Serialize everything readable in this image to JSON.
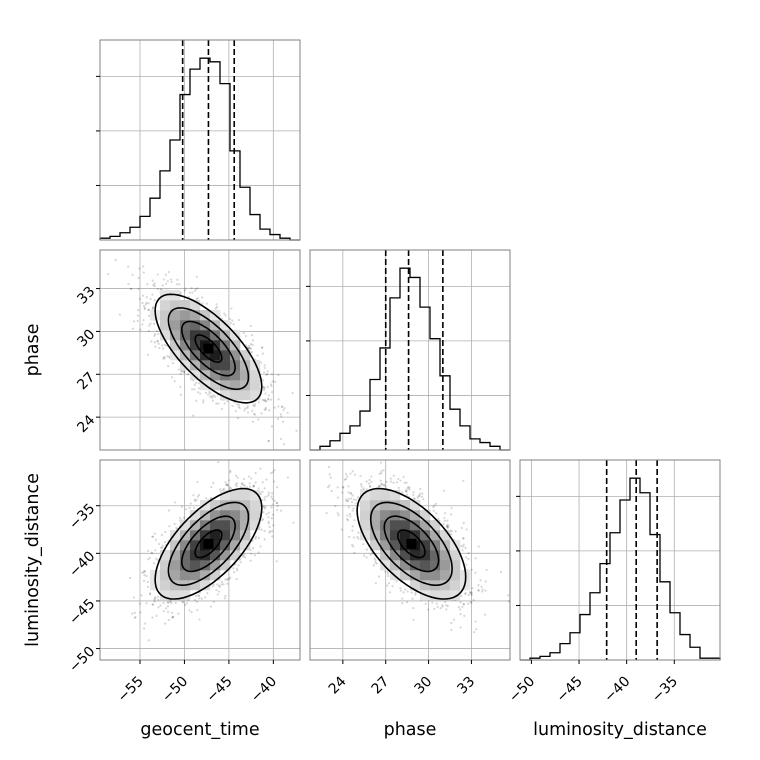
{
  "chart_data": {
    "type": "corner",
    "parameters": [
      "geocent_time",
      "phase",
      "luminosity_distance"
    ],
    "axis_labels": {
      "x": [
        "geocent_time",
        "phase",
        "luminosity_distance"
      ],
      "y": [
        "phase",
        "luminosity_distance"
      ]
    },
    "grid": true,
    "ranges": {
      "geocent_time": [
        -59.5,
        -37.0
      ],
      "phase": [
        21.7,
        35.7
      ],
      "luminosity_distance": [
        -51.2,
        -30.2
      ]
    },
    "ticks": {
      "geocent_time": [
        -55,
        -50,
        -45,
        -40
      ],
      "phase": [
        24,
        27,
        30,
        33
      ],
      "luminosity_distance": [
        -50,
        -45,
        -40,
        -35
      ]
    },
    "tick_labels": {
      "geocent_time": [
        "−55",
        "−50",
        "−45",
        "−40"
      ],
      "phase": [
        "24",
        "27",
        "30",
        "33"
      ],
      "luminosity_distance": [
        "−50",
        "−45",
        "−40",
        "−35"
      ]
    },
    "quantiles": {
      "geocent_time": [
        -50.2,
        -47.3,
        -44.4
      ],
      "phase": [
        27.0,
        28.6,
        31.0
      ],
      "luminosity_distance": [
        -42.1,
        -39.0,
        -36.8
      ]
    },
    "histograms": {
      "geocent_time": [
        0.01,
        0.02,
        0.04,
        0.07,
        0.13,
        0.23,
        0.38,
        0.55,
        0.8,
        0.94,
        1.0,
        0.98,
        0.86,
        0.49,
        0.29,
        0.14,
        0.06,
        0.03,
        0.01,
        0.0
      ],
      "phase": [
        0.0,
        0.02,
        0.05,
        0.09,
        0.13,
        0.21,
        0.38,
        0.55,
        0.82,
        0.98,
        0.93,
        0.77,
        0.6,
        0.4,
        0.22,
        0.13,
        0.06,
        0.04,
        0.02,
        0.0
      ],
      "luminosity_distance": [
        0.0,
        0.01,
        0.02,
        0.04,
        0.09,
        0.15,
        0.25,
        0.37,
        0.53,
        0.7,
        0.88,
        1.0,
        0.92,
        0.69,
        0.43,
        0.26,
        0.14,
        0.07,
        0.01,
        0.01
      ]
    },
    "pairs": [
      {
        "x": "geocent_time",
        "y": "phase",
        "mean": [
          -47.3,
          28.8
        ],
        "std": [
          3.0,
          1.9
        ],
        "rho": -0.7
      },
      {
        "x": "geocent_time",
        "y": "luminosity_distance",
        "mean": [
          -47.3,
          -39.0
        ],
        "std": [
          3.0,
          2.9
        ],
        "rho": 0.65
      },
      {
        "x": "phase",
        "y": "luminosity_distance",
        "mean": [
          28.8,
          -39.0
        ],
        "std": [
          1.9,
          2.9
        ],
        "rho": -0.6
      }
    ]
  }
}
